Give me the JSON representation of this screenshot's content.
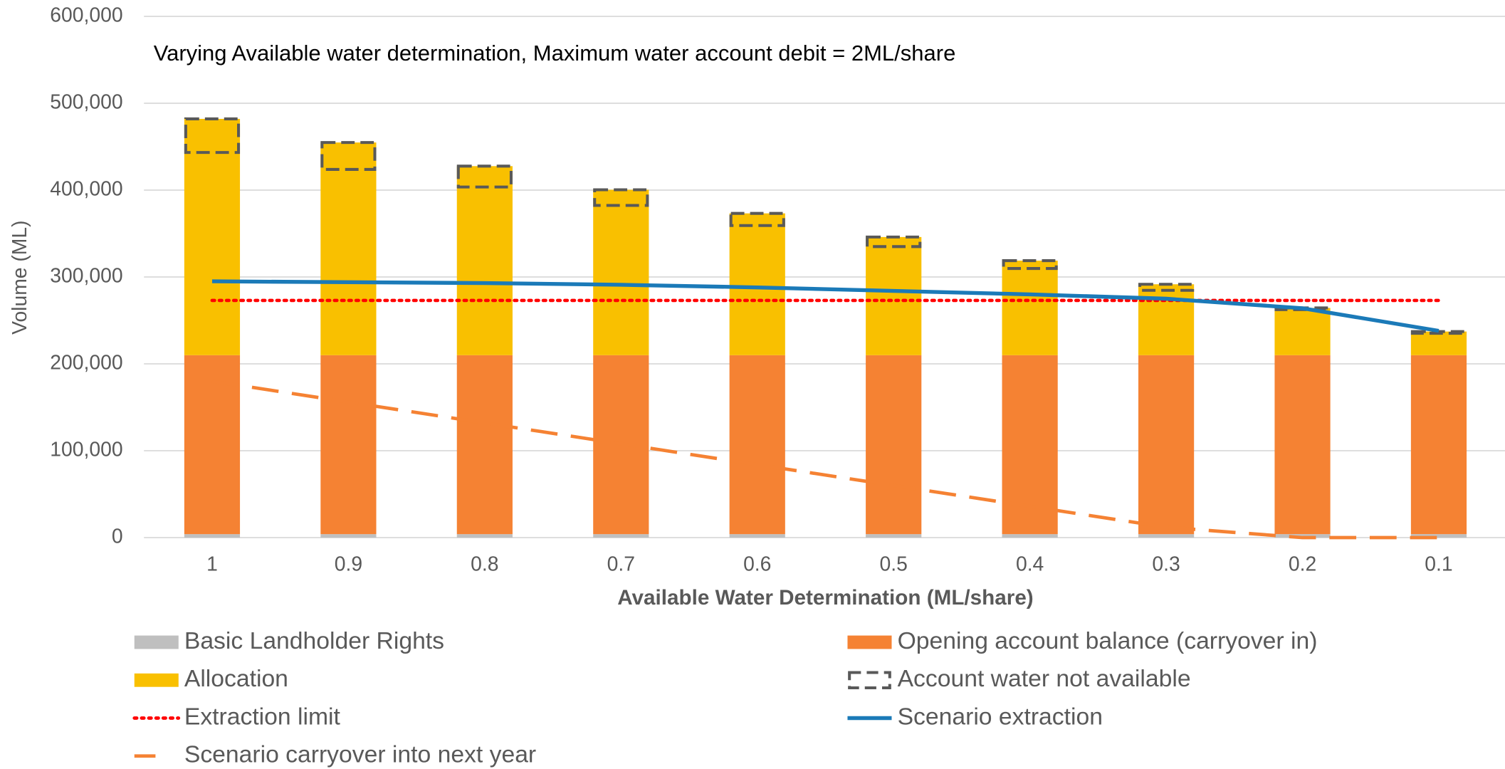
{
  "chart_data": {
    "type": "bar",
    "title": "Varying Available water determination,  Maximum water account debit = 2ML/share",
    "x_label": "Available Water Determination (ML/share)",
    "y_label": "Volume (ML)",
    "categories": [
      "1",
      "0.9",
      "0.8",
      "0.7",
      "0.6",
      "0.5",
      "0.4",
      "0.3",
      "0.2",
      "0.1"
    ],
    "ylim": [
      0,
      600000
    ],
    "yticks": [
      0,
      {
        "value": 100000,
        "label": "100,000"
      },
      {
        "value": 200000,
        "label": "200,000"
      },
      {
        "value": 300000,
        "label": "300,000"
      },
      {
        "value": 400000,
        "label": "400,000"
      },
      {
        "value": 500000,
        "label": "500,000"
      },
      {
        "value": 600000,
        "label": "600,000"
      }
    ],
    "grid": true,
    "series": [
      {
        "name": "Basic Landholder Rights",
        "style": "stacked",
        "color": "#bfbfbf",
        "values": [
          4000,
          4000,
          4000,
          4000,
          4000,
          4000,
          4000,
          4000,
          4000,
          4000
        ]
      },
      {
        "name": "Opening  account balance (carryover in)",
        "style": "stacked",
        "color": "#f58233",
        "values": [
          206000,
          206000,
          206000,
          206000,
          206000,
          206000,
          206000,
          206000,
          206000,
          206000
        ]
      },
      {
        "name": "Allocation",
        "style": "stacked",
        "color": "#f9c000",
        "values": [
          272000,
          244800,
          217600,
          190400,
          163200,
          136000,
          108800,
          81600,
          54400,
          27200
        ]
      },
      {
        "name": "Account water not available",
        "style": "overlay",
        "color": "#595959",
        "values": [
          38700,
          31000,
          24000,
          18000,
          14000,
          11000,
          9000,
          7000,
          2000,
          2000
        ]
      },
      {
        "name": "Extraction limit",
        "style": "dotted",
        "color": "#ff0000",
        "values": [
          273000,
          273000,
          273000,
          273000,
          273000,
          273000,
          273000,
          273000,
          273000,
          273000
        ]
      },
      {
        "name": "Scenario extraction",
        "style": "solid",
        "color": "#1b7ab8",
        "values": [
          295000,
          294000,
          293000,
          291000,
          288000,
          284000,
          280000,
          275000,
          264000,
          238000
        ]
      },
      {
        "name": "Scenario carryover into next year",
        "style": "dashed",
        "color": "#f58233",
        "values": [
          180000,
          156000,
          132000,
          108000,
          84000,
          60000,
          36000,
          12000,
          0,
          0
        ]
      }
    ]
  }
}
